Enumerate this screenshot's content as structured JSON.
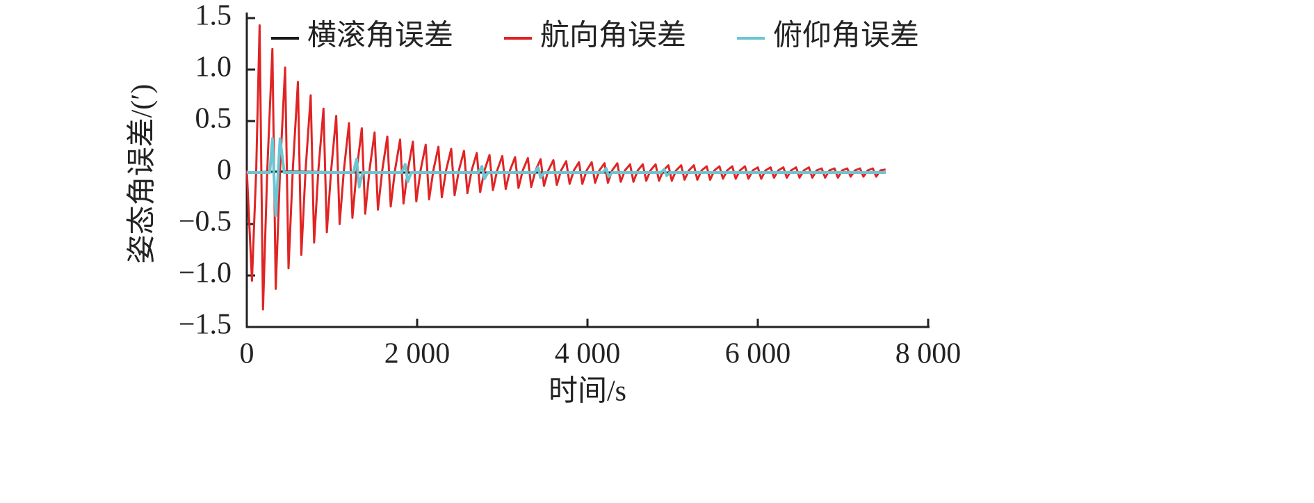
{
  "chart_data": {
    "type": "line",
    "xlabel": "时间/s",
    "ylabel": "姿态角误差/(′)",
    "xlim": [
      0,
      8000
    ],
    "ylim": [
      -1.5,
      1.5
    ],
    "xticks": [
      0,
      {
        "value": 2000,
        "label": "2 000"
      },
      {
        "value": 4000,
        "label": "4 000"
      },
      {
        "value": 6000,
        "label": "6 000"
      },
      {
        "value": 8000,
        "label": "8 000"
      }
    ],
    "yticks": [
      {
        "value": -1.5,
        "label": "−1.5"
      },
      {
        "value": -1.0,
        "label": "−1.0"
      },
      {
        "value": -0.5,
        "label": "−0.5"
      },
      0,
      0.5,
      {
        "value": 1.0,
        "label": "1.0"
      },
      1.5
    ],
    "legend": "top",
    "series": [
      {
        "name": "横滚角误差",
        "color": "#1a1a1a",
        "x": [
          0,
          400,
          1300,
          7500
        ],
        "values": [
          0,
          0.01,
          0,
          0
        ]
      },
      {
        "name": "航向角误差",
        "color": "#e02424",
        "x": [
          0,
          60,
          110,
          150,
          190,
          240,
          300,
          340,
          390,
          450,
          490,
          540,
          600,
          640,
          690,
          750,
          790,
          840,
          900,
          940,
          990,
          1050,
          1090,
          1140,
          1200,
          1240,
          1290,
          1350,
          1390,
          1440,
          1500,
          1540,
          1590,
          1650,
          1690,
          1740,
          1800,
          1840,
          1890,
          1950,
          1990,
          2040,
          2100,
          2140,
          2190,
          2250,
          2290,
          2340,
          2400,
          2440,
          2490,
          2550,
          2590,
          2640,
          2700,
          2740,
          2790,
          2850,
          2890,
          2940,
          3000,
          3040,
          3090,
          3150,
          3190,
          3240,
          3300,
          3340,
          3390,
          3450,
          3490,
          3540,
          3600,
          3640,
          3690,
          3750,
          3790,
          3840,
          3900,
          3940,
          3990,
          4050,
          4090,
          4140,
          4200,
          4240,
          4290,
          4350,
          4390,
          4440,
          4500,
          4540,
          4590,
          4650,
          4690,
          4740,
          4800,
          4840,
          4890,
          4950,
          4990,
          5040,
          5100,
          5140,
          5190,
          5250,
          5290,
          5340,
          5400,
          5440,
          5490,
          5550,
          5590,
          5640,
          5700,
          5740,
          5790,
          5850,
          5890,
          5940,
          6000,
          6040,
          6090,
          6150,
          6190,
          6240,
          6300,
          6340,
          6390,
          6450,
          6490,
          6540,
          6600,
          6640,
          6690,
          6750,
          6790,
          6840,
          6900,
          6940,
          6990,
          7050,
          7090,
          7140,
          7200,
          7240,
          7290,
          7350,
          7390,
          7440,
          7500
        ],
        "values": [
          0.02,
          -1.05,
          0.02,
          1.43,
          -1.33,
          0.02,
          1.2,
          -1.13,
          0.02,
          1.02,
          -0.93,
          0.02,
          0.88,
          -0.8,
          0.02,
          0.75,
          -0.68,
          0.02,
          0.62,
          -0.58,
          0.02,
          0.55,
          -0.5,
          0.02,
          0.48,
          -0.44,
          0.02,
          0.43,
          -0.4,
          0.02,
          0.39,
          -0.36,
          0.02,
          0.35,
          -0.33,
          0.02,
          0.32,
          -0.3,
          0.02,
          0.3,
          -0.28,
          0.02,
          0.27,
          -0.26,
          0.02,
          0.25,
          -0.24,
          0.02,
          0.23,
          -0.22,
          0.02,
          0.21,
          -0.2,
          0.02,
          0.19,
          -0.19,
          0.02,
          0.17,
          -0.17,
          0.02,
          0.16,
          -0.16,
          0.02,
          0.15,
          -0.15,
          0.02,
          0.14,
          -0.14,
          0.02,
          0.13,
          -0.13,
          0.02,
          0.12,
          -0.12,
          0.02,
          0.11,
          -0.11,
          0.02,
          0.1,
          -0.11,
          0.02,
          0.1,
          -0.1,
          0.02,
          0.09,
          -0.1,
          0.02,
          0.09,
          -0.09,
          0.02,
          0.08,
          -0.09,
          0.02,
          0.08,
          -0.08,
          0.02,
          0.08,
          -0.08,
          0.02,
          0.07,
          -0.08,
          0.02,
          0.07,
          -0.07,
          0.02,
          0.07,
          -0.07,
          0.02,
          0.06,
          -0.07,
          0.02,
          0.06,
          -0.06,
          0.02,
          0.06,
          -0.06,
          0.02,
          0.06,
          -0.06,
          0.02,
          0.05,
          -0.06,
          0.02,
          0.05,
          -0.05,
          0.02,
          0.05,
          -0.05,
          0.02,
          0.05,
          -0.05,
          0.02,
          0.05,
          -0.05,
          0.02,
          0.04,
          -0.05,
          0.02,
          0.04,
          -0.05,
          0.02,
          0.04,
          -0.04,
          0.02,
          0.04,
          -0.04,
          0.02,
          0.04,
          -0.04,
          0.02,
          0.03
        ]
      },
      {
        "name": "俯仰角误差",
        "color": "#6cc6d2",
        "x": [
          0,
          270,
          300,
          340,
          390,
          440,
          1250,
          1290,
          1320,
          1360,
          1820,
          1860,
          1890,
          1930,
          2720,
          2760,
          2790,
          2830,
          3380,
          3420,
          3450,
          3490,
          4180,
          4220,
          4250,
          4290,
          4860,
          4900,
          4930,
          4970,
          7500
        ],
        "values": [
          0,
          0,
          0.33,
          -0.42,
          0.33,
          0,
          0,
          0.13,
          -0.14,
          0,
          0,
          0.08,
          -0.09,
          0,
          0,
          0.06,
          -0.06,
          0,
          0,
          0.05,
          -0.05,
          0,
          0,
          0.04,
          -0.04,
          0,
          0,
          0.03,
          -0.03,
          0,
          0
        ]
      }
    ]
  }
}
